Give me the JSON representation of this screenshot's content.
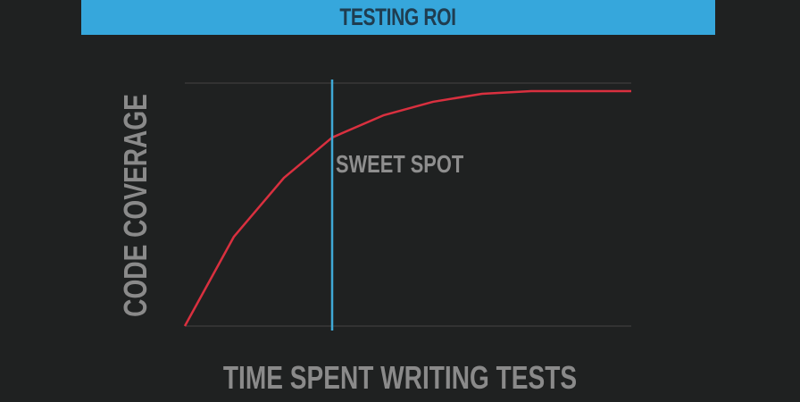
{
  "slide": {
    "title": "TESTING ROI"
  },
  "chart_data": {
    "type": "line",
    "title": "TESTING ROI",
    "xlabel": "TIME SPENT WRITING TESTS",
    "ylabel": "CODE COVERAGE",
    "xlim": [
      0,
      100
    ],
    "ylim": [
      0,
      100
    ],
    "grid": "top and bottom horizontal lines only",
    "series": [
      {
        "x": [
          0,
          11,
          22.2,
          33,
          44.6,
          55.6,
          66.6,
          77.6,
          100
        ],
        "y": [
          0,
          36.8,
          61,
          77.6,
          86.8,
          92.3,
          95.6,
          96.7,
          96.7
        ],
        "color": "#d9303f"
      }
    ],
    "vline": {
      "x": 33,
      "color": "#3fa9d6",
      "label": "SWEET SPOT"
    }
  },
  "colors": {
    "background": "#1f2121",
    "banner": "#36a7dc",
    "banner_text": "#1f3d50",
    "label_text": "#8a8a8a"
  }
}
